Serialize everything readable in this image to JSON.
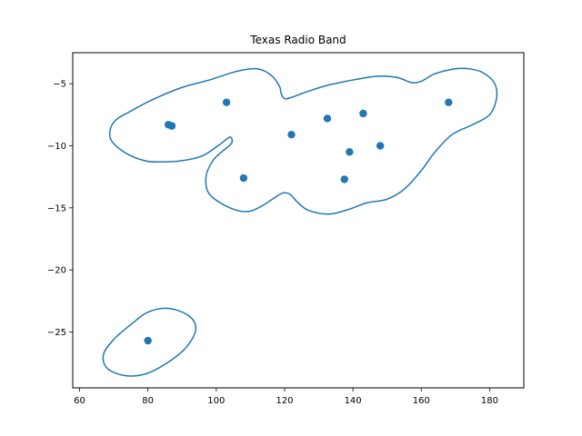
{
  "chart_data": {
    "type": "scatter",
    "title": "Texas Radio Band",
    "xlabel": "",
    "ylabel": "",
    "xlim": [
      58,
      190
    ],
    "ylim": [
      -29.5,
      -2.5
    ],
    "xticks": [
      60,
      80,
      100,
      120,
      140,
      160,
      180
    ],
    "yticks": [
      -25,
      -20,
      -15,
      -10,
      -5
    ],
    "grid": false,
    "series": [
      {
        "color": "#1f77b4",
        "points": [
          {
            "x": 80,
            "y": -25.7
          },
          {
            "x": 86,
            "y": -8.3
          },
          {
            "x": 87,
            "y": -8.4
          },
          {
            "x": 103,
            "y": -6.5
          },
          {
            "x": 108,
            "y": -12.6
          },
          {
            "x": 122,
            "y": -9.1
          },
          {
            "x": 132.5,
            "y": -7.8
          },
          {
            "x": 137.5,
            "y": -12.7
          },
          {
            "x": 139,
            "y": -10.5
          },
          {
            "x": 143,
            "y": -7.4
          },
          {
            "x": 148,
            "y": -10.0
          },
          {
            "x": 168,
            "y": -6.5
          }
        ]
      }
    ],
    "contours": [
      {
        "color": "#1f77b4",
        "points": [
          [
            120,
            -6.2
          ],
          [
            122,
            -6.1
          ],
          [
            127,
            -5.6
          ],
          [
            133,
            -5.1
          ],
          [
            140,
            -4.7
          ],
          [
            147,
            -4.4
          ],
          [
            153,
            -4.5
          ],
          [
            157,
            -4.9
          ],
          [
            160,
            -4.8
          ],
          [
            164,
            -4.2
          ],
          [
            170,
            -3.8
          ],
          [
            174,
            -3.8
          ],
          [
            178,
            -4.1
          ],
          [
            181.5,
            -5.0
          ],
          [
            182,
            -6.2
          ],
          [
            180,
            -7.5
          ],
          [
            175,
            -8.3
          ],
          [
            169,
            -9.1
          ],
          [
            164,
            -10.5
          ],
          [
            160,
            -12.0
          ],
          [
            155,
            -13.5
          ],
          [
            150,
            -14.3
          ],
          [
            144,
            -14.6
          ],
          [
            139,
            -15.1
          ],
          [
            133,
            -15.5
          ],
          [
            127,
            -15.2
          ],
          [
            124,
            -14.6
          ],
          [
            121.5,
            -13.9
          ],
          [
            119.5,
            -13.8
          ],
          [
            117,
            -14.2
          ],
          [
            113,
            -14.9
          ],
          [
            109,
            -15.3
          ],
          [
            104,
            -15.0
          ],
          [
            98,
            -13.9
          ],
          [
            97,
            -12.5
          ],
          [
            99,
            -11.2
          ],
          [
            102,
            -10.4
          ],
          [
            104.5,
            -9.8
          ],
          [
            104,
            -9.3
          ],
          [
            101,
            -9.9
          ],
          [
            96,
            -10.8
          ],
          [
            90,
            -11.2
          ],
          [
            84,
            -11.3
          ],
          [
            79,
            -11.2
          ],
          [
            73,
            -10.5
          ],
          [
            69,
            -9.4
          ],
          [
            70,
            -8.1
          ],
          [
            75,
            -7.2
          ],
          [
            82,
            -6.2
          ],
          [
            90,
            -5.3
          ],
          [
            98,
            -4.7
          ],
          [
            106,
            -4.0
          ],
          [
            112,
            -3.8
          ],
          [
            116,
            -4.3
          ],
          [
            118.5,
            -5.2
          ],
          [
            119,
            -5.8
          ],
          [
            120,
            -6.2
          ]
        ]
      },
      {
        "color": "#1f77b4",
        "points": [
          [
            86,
            -23.1
          ],
          [
            92,
            -23.7
          ],
          [
            94,
            -24.8
          ],
          [
            91,
            -26.3
          ],
          [
            85,
            -27.6
          ],
          [
            79,
            -28.4
          ],
          [
            73,
            -28.5
          ],
          [
            68,
            -27.9
          ],
          [
            67,
            -26.8
          ],
          [
            70,
            -25.6
          ],
          [
            75,
            -24.4
          ],
          [
            80,
            -23.4
          ],
          [
            86,
            -23.1
          ]
        ]
      }
    ]
  }
}
